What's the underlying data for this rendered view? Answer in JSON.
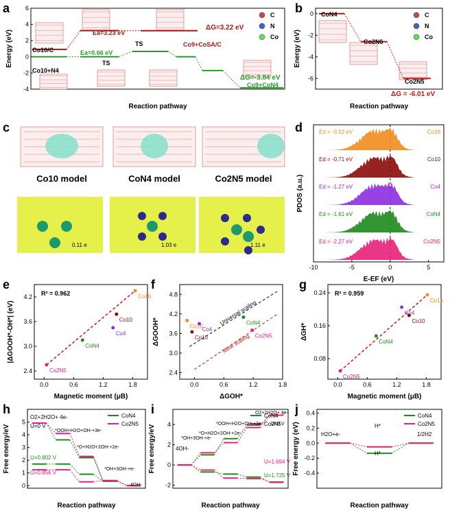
{
  "chart_data": [
    {
      "panel": "a",
      "type": "line",
      "xlabel": "Reaction pathway",
      "ylabel": "Energy (eV)",
      "ylim": [
        -4,
        6
      ],
      "yticks": [
        "6",
        "4",
        "2",
        "0",
        "-2",
        "-4"
      ],
      "legend": [
        "C",
        "N",
        "Co"
      ],
      "series": [
        {
          "name": "Co10/C (red)",
          "points": [
            0.9,
            0.9,
            3.23,
            3.22
          ]
        },
        {
          "name": "Co10+N4 (green)",
          "points": [
            0,
            0,
            0.66,
            0,
            -1.7,
            -3.84
          ]
        }
      ],
      "annotations": [
        "Co10/C",
        "Co10+N4",
        "Ea=3.23 eV",
        "TS",
        "Co9+CoSA/C",
        "ΔG=3.22 eV",
        "Ea=0.66 eV",
        "TS",
        "ΔG=-3.84 eV",
        "Co9+CoN4"
      ]
    },
    {
      "panel": "b",
      "type": "line",
      "xlabel": "Reaction pathway",
      "ylabel": "Energy (eV)",
      "ylim": [
        -7,
        0.5
      ],
      "yticks": [
        "0",
        "-2",
        "-4",
        "-6"
      ],
      "legend": [
        "C",
        "N",
        "Co"
      ],
      "series": [
        {
          "name": "",
          "points": [
            0,
            -2.6,
            -6.01
          ]
        }
      ],
      "annotations": [
        "CoN4",
        "Co2N6",
        "Co2N5",
        "ΔG = -6.01 eV"
      ]
    },
    {
      "panel": "c",
      "type": "table",
      "labels": [
        "Co10 model",
        "CoN4 model",
        "Co2N5 model"
      ],
      "charges": [
        "0.11 e",
        "1.03 e",
        "1.11 e"
      ]
    },
    {
      "panel": "d",
      "type": "area",
      "xlabel": "E-EF (eV)",
      "ylabel": "PDOS (a.u.)",
      "xlim": [
        -10,
        7
      ],
      "xticks": [
        "-10",
        "-5",
        "0",
        "5"
      ],
      "series": [
        {
          "name": "Co16",
          "ed": "Ed = -0.52 eV",
          "color": "#f28c1e"
        },
        {
          "name": "Co10",
          "ed": "Ed = -0.71 eV",
          "color": "#8b0a0a"
        },
        {
          "name": "Co4",
          "ed": "Ed = -1.27 eV",
          "color": "#8e2ee0"
        },
        {
          "name": "CoN4",
          "ed": "Ed = -1.61 eV",
          "color": "#1e8a1e"
        },
        {
          "name": "Co2N5",
          "ed": "Ed = -2.27 eV",
          "color": "#e8207a"
        }
      ]
    },
    {
      "panel": "e",
      "type": "scatter",
      "xlabel": "Magnetic moment (μB)",
      "ylabel": "|ΔGOOH*-OH*| (eV)",
      "xlim": [
        -0.2,
        2.1
      ],
      "ylim": [
        2.2,
        4.5
      ],
      "xticks": [
        "0.0",
        "0.6",
        "1.2",
        "1.8"
      ],
      "yticks": [
        "2.4",
        "3.0",
        "3.6",
        "4.2"
      ],
      "r2": "R² = 0.962",
      "points": [
        {
          "label": "Co2N5",
          "x": 0.05,
          "y": 2.55,
          "color": "#e8207a"
        },
        {
          "label": "CoN4",
          "x": 0.78,
          "y": 3.15,
          "color": "#1e8a1e"
        },
        {
          "label": "Co4",
          "x": 1.4,
          "y": 3.45,
          "color": "#8e2ee0"
        },
        {
          "label": "Co10",
          "x": 1.47,
          "y": 3.78,
          "color": "#8b0a0a"
        },
        {
          "label": "Co16",
          "x": 1.85,
          "y": 4.35,
          "color": "#f28c1e"
        }
      ]
    },
    {
      "panel": "f",
      "type": "scatter",
      "xlabel": "ΔGOH*",
      "ylabel": "ΔGOOH*",
      "xlim": [
        -0.3,
        1.8
      ],
      "ylim": [
        2.2,
        5.1
      ],
      "xticks": [
        "0.0",
        "0.6",
        "1.2",
        "1.8"
      ],
      "yticks": [
        "2.4",
        "3.0",
        "3.6",
        "4.2",
        "4.8"
      ],
      "lines": [
        "Universal scaling",
        "Ideal scaling"
      ],
      "points": [
        {
          "label": "Co16",
          "x": -0.15,
          "y": 4.0,
          "color": "#f28c1e"
        },
        {
          "label": "Co10",
          "x": -0.05,
          "y": 3.65,
          "color": "#8b0a0a"
        },
        {
          "label": "Co4",
          "x": 0.1,
          "y": 3.9,
          "color": "#8e2ee0"
        },
        {
          "label": "CoN4",
          "x": 1.0,
          "y": 4.1,
          "color": "#1e8a1e"
        },
        {
          "label": "Co2N5",
          "x": 1.18,
          "y": 3.7,
          "color": "#e8207a"
        }
      ]
    },
    {
      "panel": "g",
      "type": "scatter",
      "xlabel": "Magnetic moment (μB)",
      "ylabel": "ΔGH*",
      "xlim": [
        -0.2,
        2.1
      ],
      "ylim": [
        0.03,
        0.26
      ],
      "xticks": [
        "0.0",
        "0.6",
        "1.2",
        "1.8"
      ],
      "yticks": [
        "0.08",
        "0.16",
        "0.24"
      ],
      "r2": "R² = 0.959",
      "points": [
        {
          "label": "Co2N5",
          "x": 0.05,
          "y": 0.05,
          "color": "#e8207a"
        },
        {
          "label": "CoN4",
          "x": 0.78,
          "y": 0.135,
          "color": "#1e8a1e"
        },
        {
          "label": "Co4",
          "x": 1.3,
          "y": 0.205,
          "color": "#8e2ee0"
        },
        {
          "label": "Co10",
          "x": 1.45,
          "y": 0.185,
          "color": "#8b0a0a"
        },
        {
          "label": "Co16",
          "x": 1.82,
          "y": 0.235,
          "color": "#f28c1e"
        }
      ]
    },
    {
      "panel": "h",
      "type": "line",
      "xlabel": "Reaction pathway",
      "ylabel": "Free energy/eV",
      "ylim": [
        -0.2,
        6
      ],
      "yticks": [
        "0",
        "1",
        "2",
        "3",
        "4",
        "5"
      ],
      "series": [
        {
          "name": "CoN4",
          "color": "#1e8a1e",
          "steps": [
            4.92,
            3.6,
            2.2,
            0.35,
            0
          ]
        },
        {
          "name": "Co2N5",
          "color": "#e8207a",
          "steps": [
            4.92,
            4.1,
            2.3,
            0.4,
            0
          ]
        }
      ],
      "levels_u0": [
        {
          "name": "CoN4",
          "color": "#1e8a1e",
          "steps": [
            1.7,
            1.7,
            0.9,
            0.35,
            0
          ]
        },
        {
          "name": "Co2N5",
          "color": "#e8207a",
          "steps": [
            1.25,
            1.25,
            0.3,
            0.4,
            0
          ]
        }
      ],
      "annotations": [
        "O2+2H2O+ 4e-",
        "U=0 V",
        "*OOH+H2O+OH-+3e-",
        "*O+H2O+2OH-+2e-",
        "*OH+3OH-+e-",
        "4OH-",
        "U=0.802 V",
        "U=0.856 V"
      ]
    },
    {
      "panel": "i",
      "type": "line",
      "xlabel": "Reaction pathway",
      "ylabel": "Free energy/eV",
      "ylim": [
        -2.3,
        5.5
      ],
      "yticks": [
        "4",
        "2",
        "0",
        "-2"
      ],
      "series": [
        {
          "name": "CoN4",
          "color": "#1e8a1e",
          "steps": [
            0,
            1.0,
            2.6,
            3.95,
            4.92
          ]
        },
        {
          "name": "Co2N5",
          "color": "#e8207a",
          "steps": [
            0,
            1.2,
            2.2,
            3.7,
            4.92
          ]
        }
      ],
      "levels_u": [
        {
          "name": "CoN4",
          "color": "#1e8a1e",
          "steps": [
            0,
            -0.7,
            -0.9,
            -1.2,
            -1.72
          ]
        },
        {
          "name": "Co2N5",
          "color": "#e8207a",
          "steps": [
            0,
            -0.5,
            -1.3,
            -1.35,
            -1.69
          ]
        }
      ],
      "annotations": [
        "4OH-",
        "*OH+3OH-+e-",
        "*O+H2O+2OH-+2e-",
        "*OOH+H2O+OH-+3e-",
        "O2+2H2O+ 4e-",
        "U=0 V",
        "U=1.694 V",
        "U=1.725 V"
      ]
    },
    {
      "panel": "j",
      "type": "line",
      "xlabel": "Reaction pathway",
      "ylabel": "Free energy (eV)",
      "ylim": [
        -0.6,
        0.45
      ],
      "yticks": [
        "0.4",
        "0.2",
        "0.0",
        "-0.2",
        "-0.4"
      ],
      "series": [
        {
          "name": "CoN4",
          "color": "#1e8a1e",
          "steps": [
            0,
            -0.135,
            0
          ]
        },
        {
          "name": "Co2N5",
          "color": "#e8207a",
          "steps": [
            0,
            -0.05,
            0
          ]
        }
      ],
      "annotations": [
        "H2O+e-",
        "H*",
        "H*",
        "1/2H2"
      ]
    }
  ]
}
